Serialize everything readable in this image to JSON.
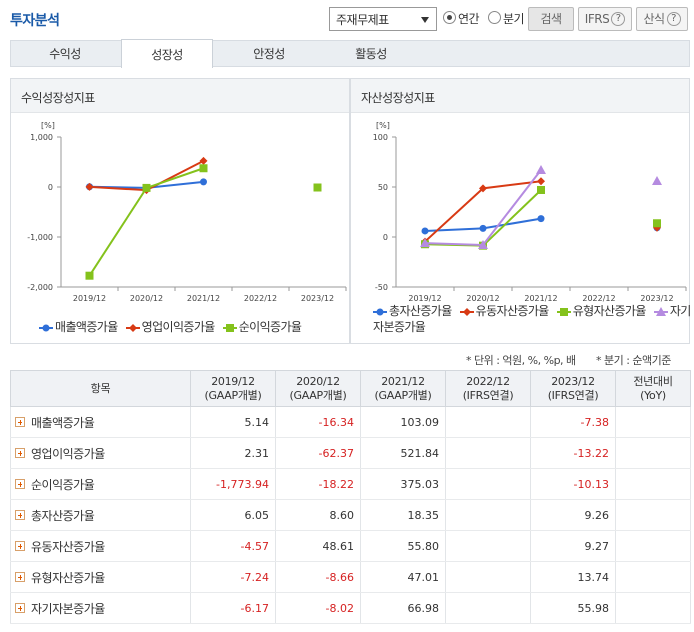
{
  "header": {
    "title": "투자분석",
    "select_value": "주재무제표",
    "radio_annual": "연간",
    "radio_quarter": "분기",
    "search_label": "검색",
    "ifrs_label": "IFRS",
    "formula_label": "산식",
    "help_glyph": "?"
  },
  "tabs": [
    "수익성",
    "성장성",
    "안정성",
    "활동성"
  ],
  "active_tab": "성장성",
  "panels": {
    "left_title": "수익성장성지표",
    "right_title": "자산성장성지표"
  },
  "chart_data": [
    {
      "type": "line",
      "title": "수익성장성지표",
      "unit": "[%]",
      "categories": [
        "2019/12",
        "2020/12",
        "2021/12",
        "2022/12",
        "2023/12"
      ],
      "ylim": [
        -2000,
        1000
      ],
      "yticks": [
        "1,000",
        "0",
        "-1,000",
        "-2,000"
      ],
      "legend_position": "bottom",
      "series": [
        {
          "name": "매출액증가율",
          "color": "#2f6fd8",
          "marker": "circle",
          "values": [
            5.14,
            -16.34,
            103.09,
            null,
            -7.38
          ]
        },
        {
          "name": "영업이익증가율",
          "color": "#d83a14",
          "marker": "diamond",
          "values": [
            2.31,
            -62.37,
            521.84,
            null,
            -13.22
          ]
        },
        {
          "name": "순이익증가율",
          "color": "#84c21c",
          "marker": "square",
          "values": [
            -1773.94,
            -18.22,
            375.03,
            null,
            -10.13
          ]
        }
      ]
    },
    {
      "type": "line",
      "title": "자산성장성지표",
      "unit": "[%]",
      "categories": [
        "2019/12",
        "2020/12",
        "2021/12",
        "2022/12",
        "2023/12"
      ],
      "ylim": [
        -50,
        100
      ],
      "yticks": [
        "100",
        "50",
        "0",
        "-50"
      ],
      "legend_position": "bottom",
      "series": [
        {
          "name": "총자산증가율",
          "color": "#2f6fd8",
          "marker": "circle",
          "values": [
            6.05,
            8.6,
            18.35,
            null,
            9.26
          ]
        },
        {
          "name": "유동자산증가율",
          "color": "#d83a14",
          "marker": "diamond",
          "values": [
            -4.57,
            48.61,
            55.8,
            null,
            9.27
          ]
        },
        {
          "name": "유형자산증가율",
          "color": "#84c21c",
          "marker": "square",
          "values": [
            -7.24,
            -8.66,
            47.01,
            null,
            13.74
          ]
        },
        {
          "name": "자기자본증가율",
          "color": "#b58be0",
          "marker": "triangle",
          "values": [
            -6.17,
            -8.02,
            66.98,
            null,
            55.98
          ]
        }
      ]
    }
  ],
  "notes": {
    "unit": "* 단위 : 억원, %, %p, 배",
    "quarter": "* 분기 : 순액기준"
  },
  "table": {
    "headers": [
      {
        "line1": "항목",
        "line2": ""
      },
      {
        "line1": "2019/12",
        "line2": "(GAAP개별)"
      },
      {
        "line1": "2020/12",
        "line2": "(GAAP개별)"
      },
      {
        "line1": "2021/12",
        "line2": "(GAAP개별)"
      },
      {
        "line1": "2022/12",
        "line2": "(IFRS연결)"
      },
      {
        "line1": "2023/12",
        "line2": "(IFRS연결)"
      },
      {
        "line1": "전년대비",
        "line2": "(YoY)"
      }
    ],
    "rows": [
      {
        "label": "매출액증가율",
        "values": [
          "5.14",
          "-16.34",
          "103.09",
          "",
          "-7.38",
          ""
        ]
      },
      {
        "label": "영업이익증가율",
        "values": [
          "2.31",
          "-62.37",
          "521.84",
          "",
          "-13.22",
          ""
        ]
      },
      {
        "label": "순이익증가율",
        "values": [
          "-1,773.94",
          "-18.22",
          "375.03",
          "",
          "-10.13",
          ""
        ]
      },
      {
        "label": "총자산증가율",
        "values": [
          "6.05",
          "8.60",
          "18.35",
          "",
          "9.26",
          ""
        ]
      },
      {
        "label": "유동자산증가율",
        "values": [
          "-4.57",
          "48.61",
          "55.80",
          "",
          "9.27",
          ""
        ]
      },
      {
        "label": "유형자산증가율",
        "values": [
          "-7.24",
          "-8.66",
          "47.01",
          "",
          "13.74",
          ""
        ]
      },
      {
        "label": "자기자본증가율",
        "values": [
          "-6.17",
          "-8.02",
          "66.98",
          "",
          "55.98",
          ""
        ]
      }
    ]
  }
}
